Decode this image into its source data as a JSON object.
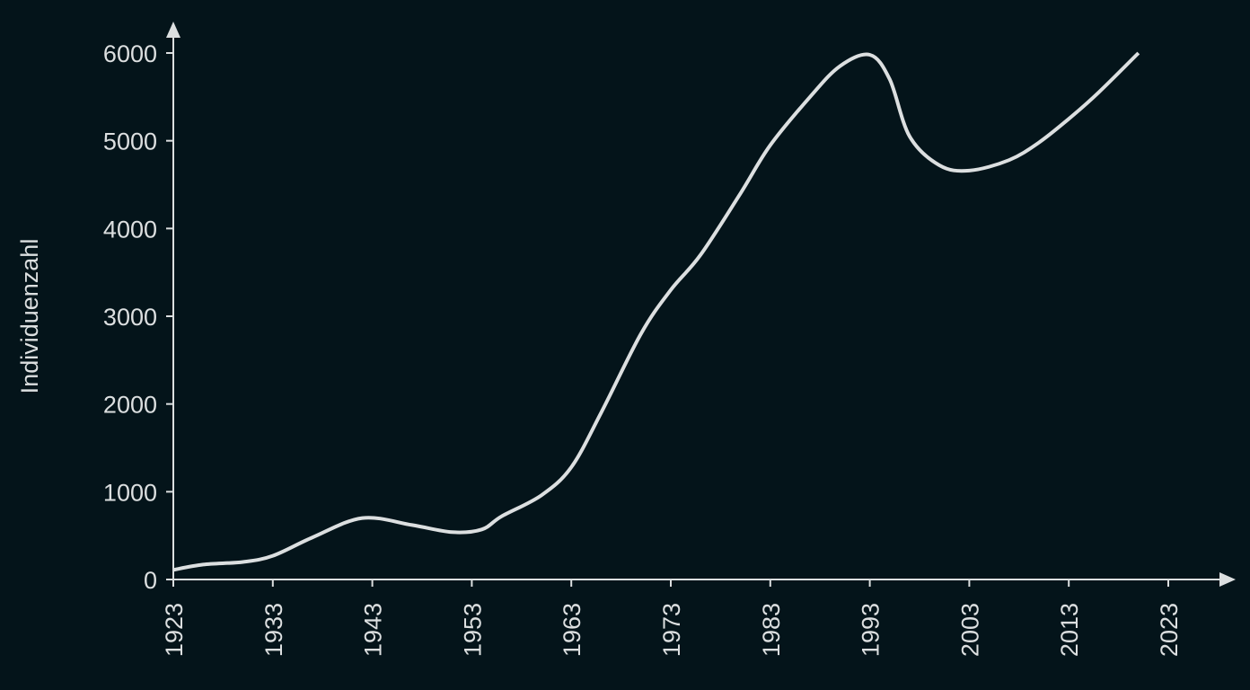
{
  "chart_data": {
    "type": "line",
    "title": "",
    "xlabel": "",
    "ylabel": "Individuenzahl",
    "x_ticks": [
      "1923",
      "1933",
      "1943",
      "1953",
      "1963",
      "1973",
      "1983",
      "1993",
      "2003",
      "2013",
      "2023"
    ],
    "y_ticks": [
      "0",
      "1000",
      "2000",
      "3000",
      "4000",
      "5000",
      "6000"
    ],
    "xlim": [
      1923,
      2023
    ],
    "ylim": [
      0,
      6000
    ],
    "grid": false,
    "legend": null,
    "colors": {
      "background": "#04141a",
      "line": "#dcdfe0",
      "axis": "#dcdfe0",
      "text": "#dcdfe0"
    },
    "series": [
      {
        "name": "Individuenzahl",
        "x": [
          1923,
          1926,
          1930,
          1933,
          1937,
          1942,
          1947,
          1951,
          1954,
          1956,
          1960,
          1963,
          1966,
          1970,
          1973,
          1976,
          1980,
          1983,
          1987,
          1990,
          1993,
          1995,
          1997,
          2000,
          2003,
          2007,
          2010,
          2013,
          2016,
          2020
        ],
        "values": [
          110,
          170,
          200,
          270,
          480,
          700,
          620,
          540,
          570,
          720,
          960,
          1280,
          1900,
          2800,
          3300,
          3700,
          4400,
          4950,
          5500,
          5850,
          5980,
          5700,
          5050,
          4720,
          4660,
          4780,
          4980,
          5250,
          5550,
          6000
        ]
      }
    ]
  }
}
